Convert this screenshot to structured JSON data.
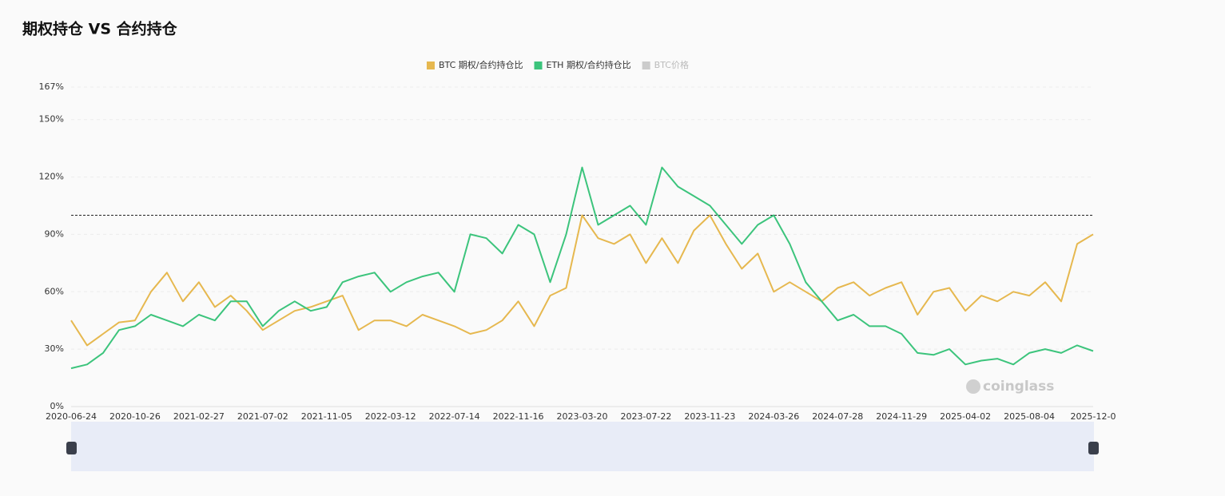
{
  "chart_data": {
    "type": "line",
    "title": "期权持仓 VS 合约持仓",
    "categories": [
      "2020-06-24",
      null,
      null,
      null,
      "2020-10-26",
      null,
      null,
      null,
      "2021-02-27",
      null,
      null,
      null,
      "2021-07-02",
      null,
      null,
      null,
      "2021-11-05",
      null,
      null,
      null,
      "2022-03-12",
      null,
      null,
      null,
      "2022-07-14",
      null,
      null,
      null,
      "2022-11-16",
      null,
      null,
      null,
      "2023-03-20",
      null,
      null,
      null,
      "2023-07-22",
      null,
      null,
      null,
      "2023-11-23",
      null,
      null,
      null,
      "2024-03-26",
      null,
      null,
      null,
      "2024-07-28",
      null,
      null,
      null,
      "2024-11-29",
      null,
      null,
      null,
      "2025-04-02",
      null,
      null,
      null,
      "2025-08-04",
      null,
      null,
      null,
      "2025-12-0"
    ],
    "series": [
      {
        "name": "BTC 期权/合约持仓比",
        "color": "#e6b84f",
        "values": [
          45,
          32,
          38,
          44,
          45,
          60,
          70,
          55,
          65,
          52,
          58,
          50,
          40,
          45,
          50,
          52,
          55,
          58,
          40,
          45,
          45,
          42,
          48,
          45,
          42,
          38,
          40,
          45,
          55,
          42,
          58,
          62,
          100,
          88,
          85,
          90,
          75,
          88,
          75,
          92,
          100,
          85,
          72,
          80,
          60,
          65,
          60,
          55,
          62,
          65,
          58,
          62,
          65,
          48,
          60,
          62,
          50,
          58,
          55,
          60,
          58,
          65,
          55,
          85,
          90
        ]
      },
      {
        "name": "ETH 期权/合约持仓比",
        "color": "#3cc47c",
        "values": [
          20,
          22,
          28,
          40,
          42,
          48,
          45,
          42,
          48,
          45,
          55,
          55,
          42,
          50,
          55,
          50,
          52,
          65,
          68,
          70,
          60,
          65,
          68,
          70,
          60,
          90,
          88,
          80,
          95,
          90,
          65,
          90,
          125,
          95,
          100,
          105,
          95,
          125,
          115,
          110,
          105,
          95,
          85,
          95,
          100,
          85,
          65,
          55,
          45,
          48,
          42,
          42,
          38,
          28,
          27,
          30,
          22,
          24,
          25,
          22,
          28,
          30,
          28,
          32,
          29
        ]
      }
    ],
    "hidden_series": [
      {
        "name": "BTC价格",
        "color": "#cccccc"
      }
    ],
    "ylim": [
      0,
      167
    ],
    "yticks": [
      {
        "value": 0,
        "label": "0%"
      },
      {
        "value": 30,
        "label": "30%"
      },
      {
        "value": 60,
        "label": "60%"
      },
      {
        "value": 90,
        "label": "90%"
      },
      {
        "value": 120,
        "label": "120%"
      },
      {
        "value": 150,
        "label": "150%"
      },
      {
        "value": 167,
        "label": "167%"
      }
    ],
    "reference_line": 100,
    "grid": true,
    "watermark": "coinglass"
  }
}
